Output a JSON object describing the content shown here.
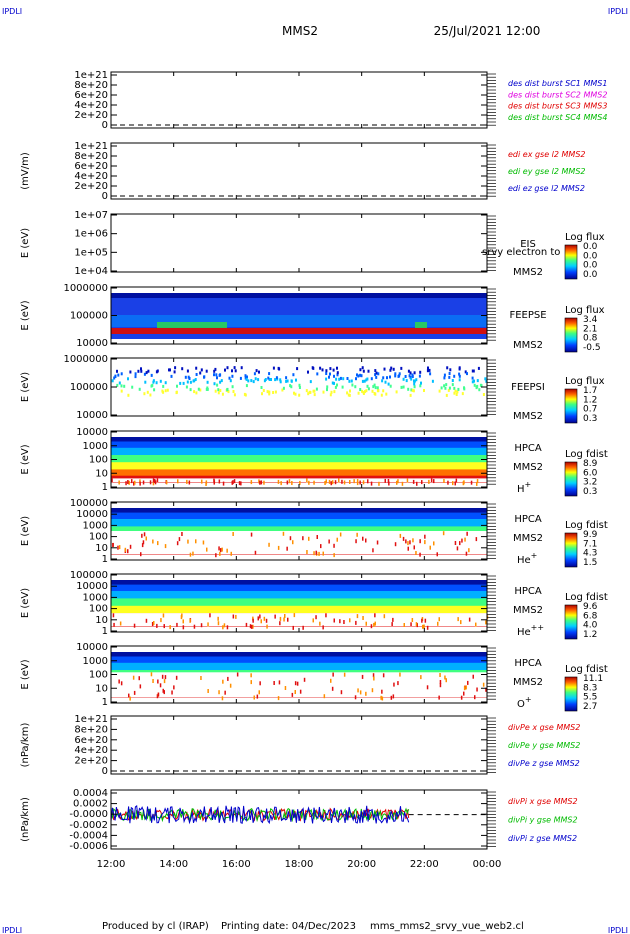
{
  "header": {
    "corner_label": "IPDLI",
    "title": "MMS2",
    "datetime": "25/Jul/2021 12:00"
  },
  "footer": {
    "producer": "Produced by cl (IRAP)",
    "printing_date": "Printing date: 04/Dec/2023",
    "filename": "mms_mms2_srvy_vue_web2.cl"
  },
  "colors": {
    "red": "#e00000",
    "green": "#00bb00",
    "blue": "#0000cc",
    "magenta": "#e000e0"
  },
  "chart_data": [
    {
      "type": "line",
      "ylabel": "",
      "yticks": [
        "1e+21",
        "8e+20",
        "6e+20",
        "4e+20",
        "2e+20",
        "0"
      ],
      "series": [
        {
          "name": "des dist burst SC1 MMS1",
          "color": "#0000cc",
          "values": []
        },
        {
          "name": "des dist burst SC2 MMS2",
          "color": "#e000e0",
          "values": []
        },
        {
          "name": "des dist burst SC3 MMS3",
          "color": "#e00000",
          "values": []
        },
        {
          "name": "des dist burst SC4 MMS4",
          "color": "#00bb00",
          "values": []
        }
      ]
    },
    {
      "type": "line",
      "ylabel": "(mV/m)",
      "yticks": [
        "1e+21",
        "8e+20",
        "6e+20",
        "4e+20",
        "2e+20",
        "0"
      ],
      "series": [
        {
          "name": "edi ex gse l2 MMS2",
          "color": "#e00000",
          "values": []
        },
        {
          "name": "edi ey gse l2 MMS2",
          "color": "#00bb00",
          "values": []
        },
        {
          "name": "edi ez gse l2 MMS2",
          "color": "#0000cc",
          "values": []
        }
      ]
    },
    {
      "type": "heatmap",
      "ylabel": "E (eV)",
      "yticks": [
        "1e+07",
        "1e+06",
        "1e+05",
        "1e+04"
      ],
      "labels": [
        "EIS",
        "MMS2"
      ],
      "overlay_text": "srvy electron to",
      "colorbar": {
        "title": "Log flux",
        "ticks": [
          "0.0",
          "0.0",
          "0.0",
          "0.0"
        ]
      }
    },
    {
      "type": "heatmap",
      "ylabel": "E (eV)",
      "yticks": [
        "1000000",
        "100000",
        "10000"
      ],
      "labels": [
        "FEEPSE",
        "MMS2"
      ],
      "colorbar": {
        "title": "Log flux",
        "ticks": [
          "3.4",
          "2.1",
          "0.8",
          "-0.5"
        ]
      }
    },
    {
      "type": "heatmap",
      "ylabel": "E (eV)",
      "yticks": [
        "1000000",
        "100000",
        "10000"
      ],
      "labels": [
        "FEEPSI",
        "MMS2"
      ],
      "colorbar": {
        "title": "Log flux",
        "ticks": [
          "1.7",
          "1.2",
          "0.7",
          "0.3"
        ]
      }
    },
    {
      "type": "heatmap",
      "ylabel": "E (eV)",
      "yticks": [
        "10000",
        "1000",
        "100",
        "10",
        "1"
      ],
      "labels": [
        "HPCA",
        "MMS2"
      ],
      "species": {
        "base": "H",
        "sup": "+"
      },
      "colorbar": {
        "title": "Log fdist",
        "ticks": [
          "8.9",
          "6.0",
          "3.2",
          "0.3"
        ]
      }
    },
    {
      "type": "heatmap",
      "ylabel": "E (eV)",
      "yticks": [
        "100000",
        "10000",
        "1000",
        "100",
        "10",
        "1"
      ],
      "labels": [
        "HPCA",
        "MMS2"
      ],
      "species": {
        "base": "He",
        "sup": "+"
      },
      "colorbar": {
        "title": "Log fdist",
        "ticks": [
          "9.9",
          "7.1",
          "4.3",
          "1.5"
        ]
      }
    },
    {
      "type": "heatmap",
      "ylabel": "E (eV)",
      "yticks": [
        "100000",
        "10000",
        "1000",
        "100",
        "10",
        "1"
      ],
      "labels": [
        "HPCA",
        "MMS2"
      ],
      "species": {
        "base": "He",
        "sup": "++"
      },
      "colorbar": {
        "title": "Log fdist",
        "ticks": [
          "9.6",
          "6.8",
          "4.0",
          "1.2"
        ]
      }
    },
    {
      "type": "heatmap",
      "ylabel": "E (eV)",
      "yticks": [
        "10000",
        "1000",
        "100",
        "10",
        "1"
      ],
      "labels": [
        "HPCA",
        "MMS2"
      ],
      "species": {
        "base": "O",
        "sup": "+"
      },
      "colorbar": {
        "title": "Log fdist",
        "ticks": [
          "11.1",
          "8.3",
          "5.5",
          "2.7"
        ]
      }
    },
    {
      "type": "line",
      "ylabel": "(nPa/km)",
      "yticks": [
        "1e+21",
        "8e+20",
        "6e+20",
        "4e+20",
        "2e+20",
        "0"
      ],
      "series": [
        {
          "name": "divPe x gse MMS2",
          "color": "#e00000",
          "values": []
        },
        {
          "name": "divPe y gse MMS2",
          "color": "#00bb00",
          "values": []
        },
        {
          "name": "divPe z gse MMS2",
          "color": "#0000cc",
          "values": []
        }
      ]
    },
    {
      "type": "line",
      "ylabel": "(nPa/km)",
      "yticks": [
        "0.0004",
        "0.0002",
        "-0.0000",
        "-0.0002",
        "-0.0004",
        "-0.0006"
      ],
      "ylim": [
        -0.0007,
        0.0005
      ],
      "x_data_end": "21:30",
      "series": [
        {
          "name": "divPi x gse MMS2",
          "color": "#e00000",
          "values": []
        },
        {
          "name": "divPi y gse MMS2",
          "color": "#00bb00",
          "values": []
        },
        {
          "name": "divPi z gse MMS2",
          "color": "#0000cc",
          "values": []
        }
      ]
    }
  ],
  "xaxis": {
    "range": [
      "12:00",
      "00:00"
    ],
    "ticks": [
      "12:00",
      "14:00",
      "16:00",
      "18:00",
      "20:00",
      "22:00",
      "00:00"
    ]
  }
}
